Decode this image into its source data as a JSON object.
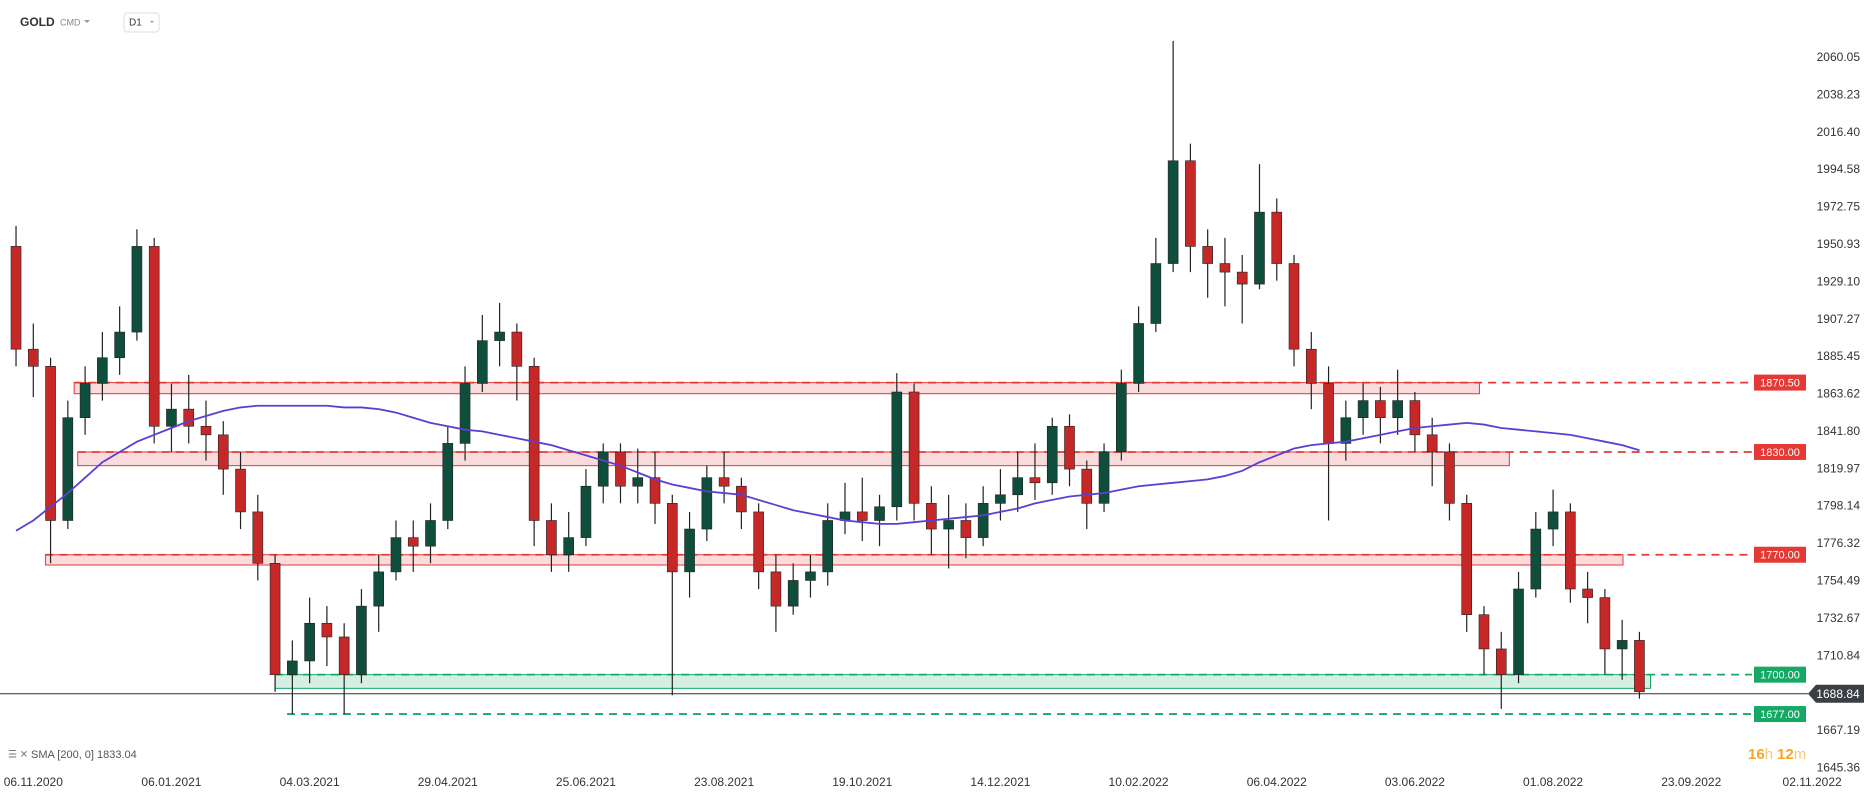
{
  "header": {
    "symbol": "GOLD",
    "market": "CMD",
    "interval": "D1"
  },
  "chart_data": {
    "type": "candlestick",
    "categories": [
      null,
      "06.11.2020",
      null,
      null,
      null,
      null,
      null,
      null,
      null,
      "06.01.2021",
      null,
      null,
      null,
      null,
      null,
      null,
      null,
      "04.03.2021",
      null,
      null,
      null,
      null,
      null,
      null,
      null,
      "29.04.2021",
      null,
      null,
      null,
      null,
      null,
      null,
      null,
      "25.06.2021",
      null,
      null,
      null,
      null,
      null,
      null,
      null,
      "23.08.2021",
      null,
      null,
      null,
      null,
      null,
      null,
      null,
      "19.10.2021",
      null,
      null,
      null,
      null,
      null,
      null,
      null,
      "14.12.2021",
      null,
      null,
      null,
      null,
      null,
      null,
      null,
      "10.02.2022",
      null,
      null,
      null,
      null,
      null,
      null,
      null,
      "06.04.2022",
      null,
      null,
      null,
      null,
      null,
      null,
      null,
      "03.06.2022",
      null,
      null,
      null,
      null,
      null,
      null,
      null,
      "01.08.2022",
      null,
      null,
      null,
      null,
      null,
      null,
      null,
      "23.09.2022",
      null,
      null,
      null,
      null,
      null,
      null,
      "02.11.2022"
    ],
    "open": [
      1950,
      1890,
      1880,
      1790,
      1850,
      1870,
      1885,
      1900,
      1950,
      1845,
      1855,
      1845,
      1840,
      1820,
      1795,
      1765,
      1700,
      1708,
      1730,
      1722,
      1700,
      1740,
      1760,
      1780,
      1775,
      1790,
      1835,
      1870,
      1895,
      1900,
      1880,
      1790,
      1770,
      1780,
      1810,
      1830,
      1810,
      1815,
      1800,
      1760,
      1785,
      1815,
      1810,
      1795,
      1760,
      1740,
      1755,
      1760,
      1790,
      1795,
      1790,
      1798,
      1865,
      1800,
      1785,
      1790,
      1780,
      1800,
      1805,
      1815,
      1812,
      1845,
      1820,
      1800,
      1830,
      1870,
      1905,
      1940,
      2000,
      1950,
      1940,
      1935,
      1928,
      1970,
      1940,
      1890,
      1870,
      1835,
      1850,
      1860,
      1850,
      1860,
      1840,
      1830,
      1800,
      1735,
      1715,
      1700,
      1750,
      1785,
      1795,
      1750,
      1745,
      1715,
      1720,
      null,
      null,
      null,
      null,
      null,
      null,
      null,
      null,
      null,
      null
    ],
    "high": [
      1962,
      1905,
      1885,
      1860,
      1880,
      1900,
      1915,
      1960,
      1955,
      1870,
      1875,
      1860,
      1848,
      1830,
      1805,
      1770,
      1720,
      1745,
      1740,
      1730,
      1750,
      1770,
      1790,
      1790,
      1800,
      1845,
      1880,
      1910,
      1917,
      1905,
      1885,
      1800,
      1795,
      1820,
      1835,
      1835,
      1832,
      1830,
      1805,
      1795,
      1822,
      1830,
      1815,
      1800,
      1770,
      1765,
      1770,
      1800,
      1812,
      1815,
      1805,
      1876,
      1870,
      1810,
      1805,
      1800,
      1810,
      1820,
      1830,
      1835,
      1850,
      1852,
      1825,
      1835,
      1878,
      1915,
      1955,
      2070,
      2010,
      1960,
      1955,
      1945,
      1998,
      1978,
      1945,
      1900,
      1880,
      1860,
      1870,
      1868,
      1878,
      1865,
      1850,
      1835,
      1805,
      1740,
      1725,
      1760,
      1795,
      1808,
      1800,
      1760,
      1750,
      1732,
      1725,
      null,
      null,
      null,
      null,
      null,
      null,
      null,
      null,
      null,
      null
    ],
    "low": [
      1880,
      1862,
      1765,
      1785,
      1840,
      1860,
      1875,
      1895,
      1835,
      1830,
      1835,
      1825,
      1805,
      1785,
      1755,
      1690,
      1677,
      1695,
      1705,
      1677,
      1695,
      1725,
      1755,
      1760,
      1765,
      1785,
      1825,
      1865,
      1880,
      1860,
      1775,
      1760,
      1760,
      1775,
      1800,
      1800,
      1800,
      1788,
      1688,
      1745,
      1778,
      1800,
      1785,
      1750,
      1725,
      1735,
      1745,
      1752,
      1782,
      1778,
      1775,
      1790,
      1790,
      1770,
      1762,
      1768,
      1775,
      1790,
      1795,
      1802,
      1805,
      1810,
      1785,
      1795,
      1825,
      1865,
      1900,
      1935,
      1935,
      1920,
      1915,
      1905,
      1925,
      1930,
      1880,
      1855,
      1790,
      1825,
      1840,
      1835,
      1840,
      1830,
      1810,
      1790,
      1725,
      1700,
      1680,
      1695,
      1745,
      1775,
      1742,
      1730,
      1700,
      1697,
      1686,
      null,
      null,
      null,
      null,
      null,
      null,
      null,
      null,
      null,
      null
    ],
    "close": [
      1890,
      1880,
      1790,
      1850,
      1870,
      1885,
      1900,
      1950,
      1845,
      1855,
      1845,
      1840,
      1820,
      1795,
      1765,
      1700,
      1708,
      1730,
      1722,
      1700,
      1740,
      1760,
      1780,
      1775,
      1790,
      1835,
      1870,
      1895,
      1900,
      1880,
      1790,
      1770,
      1780,
      1810,
      1830,
      1810,
      1815,
      1800,
      1760,
      1785,
      1815,
      1810,
      1795,
      1760,
      1740,
      1755,
      1760,
      1790,
      1795,
      1790,
      1798,
      1865,
      1800,
      1785,
      1790,
      1780,
      1800,
      1805,
      1815,
      1812,
      1845,
      1820,
      1800,
      1830,
      1870,
      1905,
      1940,
      2000,
      1950,
      1940,
      1935,
      1928,
      1970,
      1940,
      1890,
      1870,
      1835,
      1850,
      1860,
      1850,
      1860,
      1840,
      1830,
      1800,
      1735,
      1715,
      1700,
      1750,
      1785,
      1795,
      1750,
      1745,
      1715,
      1720,
      1690,
      null,
      null,
      null,
      null,
      null,
      null,
      null,
      null,
      null,
      null
    ],
    "up_color": "#0f4d3c",
    "down_color": "#c62828",
    "sma": {
      "label": "SMA [200, 0]",
      "last": 1833.04,
      "color": "#5b3fd1",
      "values": [
        1784,
        1790,
        1798,
        1806,
        1815,
        1824,
        1830,
        1836,
        1840,
        1844,
        1848,
        1851,
        1854,
        1856,
        1857,
        1857,
        1857,
        1857,
        1857,
        1856,
        1856,
        1855,
        1853,
        1850,
        1847,
        1845,
        1843,
        1842,
        1840,
        1838,
        1836,
        1834,
        1831,
        1828,
        1825,
        1822,
        1818,
        1814,
        1811,
        1809,
        1807,
        1806,
        1805,
        1802,
        1799,
        1796,
        1794,
        1792,
        1790,
        1789,
        1788,
        1788,
        1789,
        1790,
        1791,
        1792,
        1793,
        1795,
        1797,
        1800,
        1802,
        1804,
        1805,
        1806,
        1808,
        1810,
        1811,
        1812,
        1813,
        1814,
        1816,
        1819,
        1824,
        1828,
        1832,
        1834,
        1835,
        1836,
        1838,
        1840,
        1842,
        1844,
        1845,
        1846,
        1847,
        1846,
        1844,
        1843,
        1842,
        1841,
        1840,
        1838,
        1836,
        1834,
        1831,
        null,
        null,
        null,
        null,
        null,
        null,
        null,
        null,
        null,
        null
      ]
    },
    "zones": [
      {
        "level": {
          "value": 1870.5,
          "label": "1870.50"
        },
        "low": 1864,
        "color": "#e53935"
      },
      {
        "level": {
          "value": 1830,
          "label": "1830.00"
        },
        "low": 1822,
        "color": "#e53935"
      },
      {
        "level": {
          "value": 1770,
          "label": "1770.00"
        },
        "low": 1764,
        "color": "#e53935"
      },
      {
        "level": {
          "value": 1700,
          "label": "1700.00"
        },
        "low": 1692,
        "color": "#16a865"
      },
      {
        "level": {
          "value": 1677,
          "label": "1677.00"
        },
        "color": "#16a865"
      }
    ],
    "current_price": 1688.84,
    "ylim": [
      1642,
      2074
    ],
    "yticks": [
      2060.05,
      2038.23,
      {
        "value": 2016.4,
        "label": "2016.40"
      },
      1994.58,
      1972.75,
      1950.93,
      {
        "value": 1929.1,
        "label": "1929.10"
      },
      1907.27,
      1885.45,
      1863.62,
      {
        "value": 1841.8,
        "label": "1841.80"
      },
      1819.97,
      1798.14,
      1776.32,
      1754.49,
      1732.67,
      1710.84,
      1667.19,
      1645.36
    ]
  },
  "timer": {
    "hours": "16",
    "h": "h",
    "minutes": "12",
    "m": "m"
  }
}
